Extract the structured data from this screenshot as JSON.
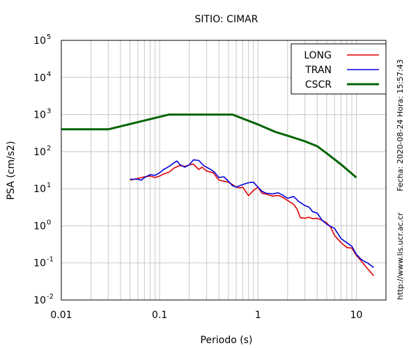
{
  "chart_data": {
    "type": "line",
    "title": "SITIO: CIMAR",
    "xlabel": "Periodo (s)",
    "ylabel": "PSA (cm/s2)",
    "x_scale": "log",
    "y_scale": "log",
    "xlim": [
      0.01,
      20
    ],
    "ylim": [
      0.01,
      100000
    ],
    "grid": true,
    "legend_position": "top-right",
    "x_ticks": [
      {
        "value": 0.01,
        "label": "0.01"
      },
      {
        "value": 0.1,
        "label": "0.1"
      },
      {
        "value": 1,
        "label": "1"
      },
      {
        "value": 10,
        "label": "10"
      }
    ],
    "y_ticks": [
      {
        "value": 0.01,
        "base": "10",
        "exp": "-2"
      },
      {
        "value": 0.1,
        "base": "10",
        "exp": "-1"
      },
      {
        "value": 1,
        "base": "10",
        "exp": "0"
      },
      {
        "value": 10,
        "base": "10",
        "exp": "1"
      },
      {
        "value": 100,
        "base": "10",
        "exp": "2"
      },
      {
        "value": 1000,
        "base": "10",
        "exp": "3"
      },
      {
        "value": 10000,
        "base": "10",
        "exp": "4"
      },
      {
        "value": 100000,
        "base": "10",
        "exp": "5"
      }
    ],
    "annotations": {
      "date": "Fecha: 2020-08-24 Hora: 15:57:43",
      "url": "http://www.lis.ucr.ac.cr"
    },
    "series": [
      {
        "name": "LONG",
        "color": "#e00000",
        "x": [
          0.05,
          0.06,
          0.065,
          0.07,
          0.08,
          0.09,
          0.1,
          0.11,
          0.125,
          0.14,
          0.16,
          0.18,
          0.2,
          0.22,
          0.25,
          0.27,
          0.3,
          0.35,
          0.4,
          0.45,
          0.5,
          0.55,
          0.6,
          0.65,
          0.7,
          0.8,
          0.9,
          1.0,
          1.1,
          1.2,
          1.4,
          1.6,
          1.8,
          2.0,
          2.3,
          2.5,
          2.7,
          3.0,
          3.3,
          3.6,
          4.0,
          4.5,
          5.0,
          5.5,
          6.0,
          7.0,
          8.0,
          9.0,
          10.0,
          11.0,
          12.0,
          13.0,
          15.0
        ],
        "y": [
          17,
          19,
          20,
          21,
          22,
          20,
          22,
          25,
          28,
          36,
          42,
          40,
          44,
          46,
          33,
          38,
          30,
          27,
          17,
          16,
          15,
          13,
          11,
          10.5,
          11,
          6.5,
          9,
          11,
          7.5,
          7.2,
          6.3,
          6.6,
          5.8,
          4.8,
          3.8,
          2.8,
          1.65,
          1.6,
          1.7,
          1.55,
          1.6,
          1.4,
          1.2,
          0.9,
          0.55,
          0.35,
          0.26,
          0.25,
          0.16,
          0.12,
          0.09,
          0.07,
          0.045
        ]
      },
      {
        "name": "TRAN",
        "color": "#0000dd",
        "x": [
          0.05,
          0.06,
          0.065,
          0.07,
          0.08,
          0.09,
          0.1,
          0.11,
          0.125,
          0.14,
          0.15,
          0.16,
          0.18,
          0.2,
          0.22,
          0.25,
          0.28,
          0.3,
          0.33,
          0.36,
          0.4,
          0.45,
          0.5,
          0.55,
          0.6,
          0.7,
          0.8,
          0.9,
          1.0,
          1.1,
          1.2,
          1.4,
          1.6,
          1.8,
          2.0,
          2.3,
          2.6,
          3.0,
          3.3,
          3.6,
          4.0,
          4.5,
          5.0,
          6.0,
          7.0,
          8.0,
          9.0,
          10.0,
          11.0,
          12.0,
          13.0,
          15.0
        ],
        "y": [
          18,
          18,
          17,
          20,
          24,
          23,
          27,
          33,
          40,
          50,
          56,
          45,
          38,
          44,
          60,
          58,
          42,
          38,
          33,
          28,
          20,
          21,
          16,
          12,
          11,
          13,
          14.5,
          15,
          11,
          8.5,
          7.6,
          7.2,
          7.8,
          6.6,
          5.5,
          6.2,
          4.5,
          3.5,
          3.2,
          2.4,
          2.2,
          1.4,
          1.1,
          0.85,
          0.45,
          0.35,
          0.28,
          0.17,
          0.13,
          0.11,
          0.1,
          0.075
        ]
      },
      {
        "name": "CSCR",
        "color": "#006400",
        "x": [
          0.01,
          0.03,
          0.125,
          0.55,
          1.0,
          1.5,
          2.0,
          3.0,
          4.0,
          5.0,
          7.0,
          10.0
        ],
        "y": [
          400,
          400,
          1000,
          1000,
          540,
          340,
          270,
          190,
          140,
          90,
          45,
          20
        ]
      }
    ]
  }
}
